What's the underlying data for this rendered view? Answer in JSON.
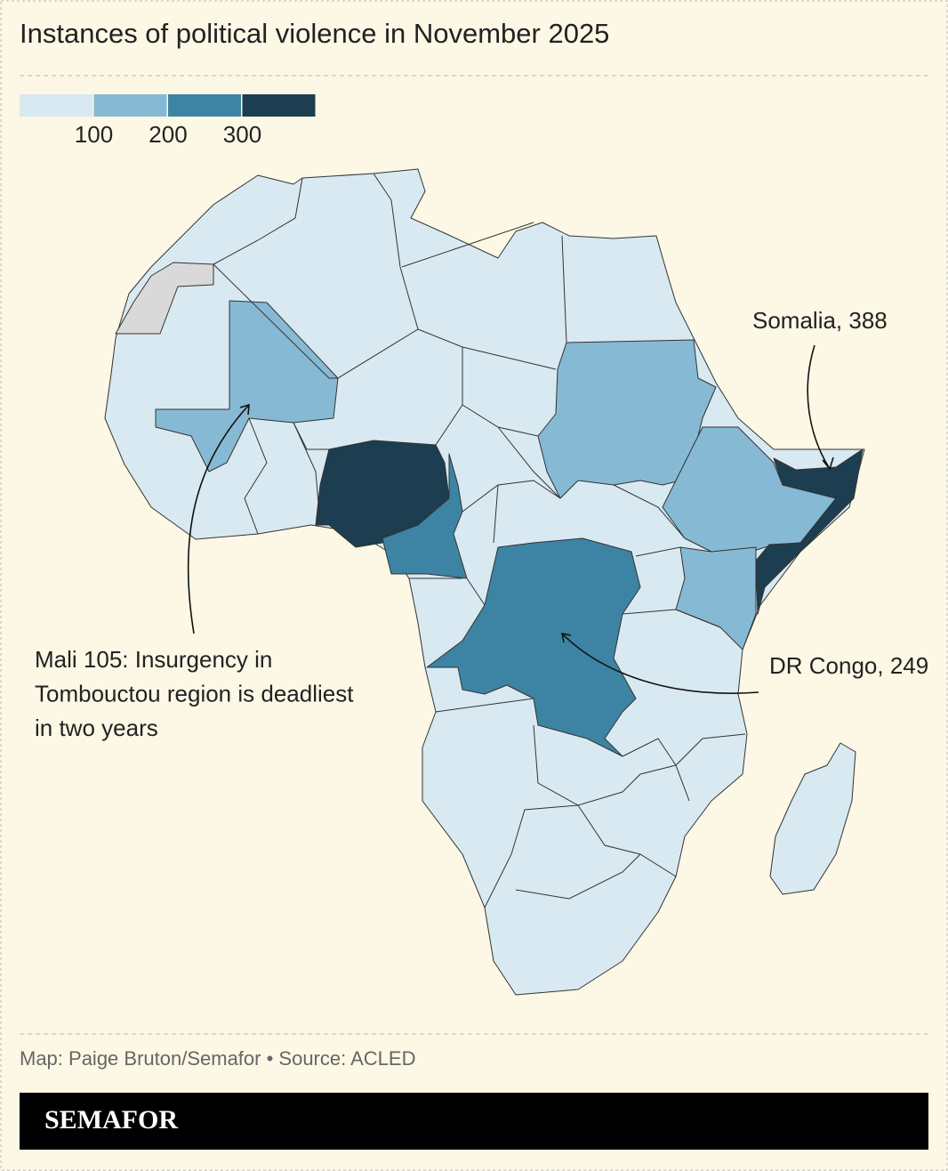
{
  "title": "Instances of political violence in November 2025",
  "legend": {
    "colors": [
      "#d9e9f2",
      "#86b9d3",
      "#3d84a4",
      "#1c3e50"
    ],
    "ticks": [
      100,
      200,
      300
    ]
  },
  "map_colors": {
    "no_data": "#d9d9d9",
    "border": "#333333"
  },
  "annotations": [
    {
      "text": "Somalia, 388"
    },
    {
      "text": "DR Congo, 249"
    },
    {
      "lines": [
        "Mali 105: Insurgency in",
        "Tombouctou region is deadliest",
        "in two years"
      ]
    }
  ],
  "credit": "Map: Paige Bruton/Semafor • Source: ACLED",
  "brand": "SEMAFOR"
}
